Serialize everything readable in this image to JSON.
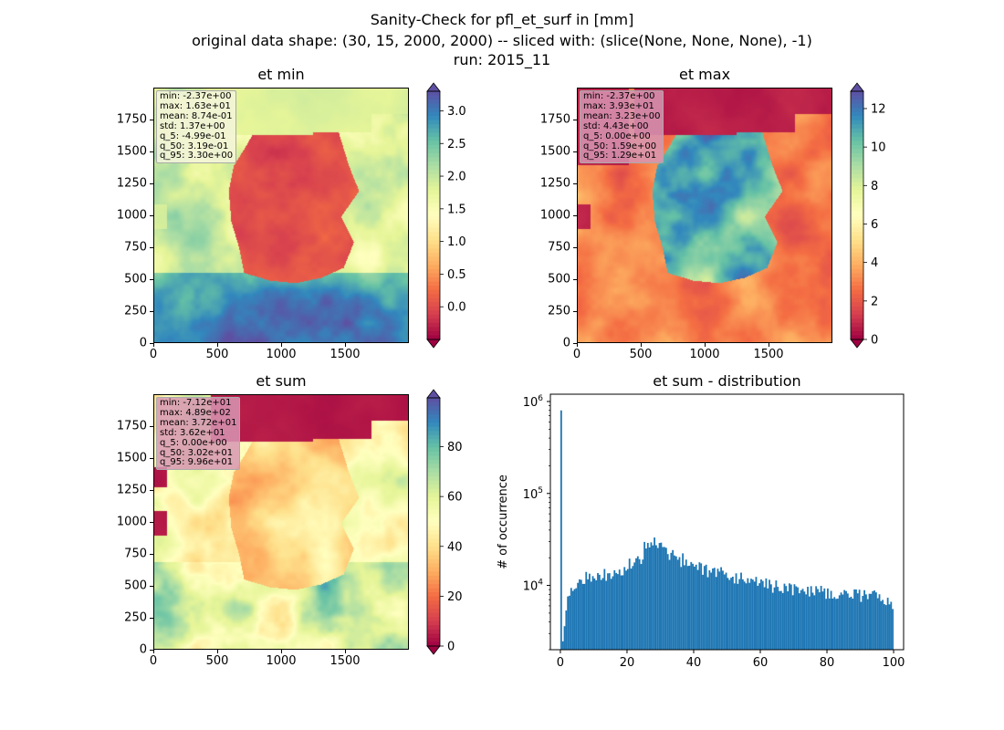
{
  "figure": {
    "title_line1": "Sanity-Check for pfl_et_surf in [mm]",
    "title_line2": "original data shape: (30, 15, 2000, 2000) -- sliced with: (slice(None, None, None), -1)",
    "title_line3": "run: 2015_11"
  },
  "colormap": [
    "#9e0142",
    "#d53e4f",
    "#f46d43",
    "#fdae61",
    "#fee08b",
    "#ffffbf",
    "#e6f598",
    "#abdda4",
    "#66c2a5",
    "#3288bd",
    "#5e4fa2"
  ],
  "panels": [
    {
      "title": "et min",
      "stats": [
        "min: -2.37e+00",
        "max: 1.63e+01",
        "mean: 8.74e-01",
        "std: 1.37e+00",
        "q_5: -4.99e-01",
        "q_50: 3.19e-01",
        "q_95: 3.30e+00"
      ],
      "stats_style": "light",
      "xticks": [
        "0",
        "500",
        "1000",
        "1500"
      ],
      "yticks": [
        "0",
        "250",
        "500",
        "750",
        "1000",
        "1250",
        "1500",
        "1750"
      ],
      "colorbar_ticks": [
        "0.0",
        "0.5",
        "1.0",
        "1.5",
        "2.0",
        "2.5",
        "3.0"
      ],
      "colorbar_range": [
        -0.5,
        3.3
      ],
      "colorbar_tick_values": [
        0.0,
        0.5,
        1.0,
        1.5,
        2.0,
        2.5,
        3.0
      ]
    },
    {
      "title": "et max",
      "stats": [
        "min: -2.37e+00",
        "max: 3.93e+01",
        "mean: 3.23e+00",
        "std: 4.43e+00",
        "q_5: 0.00e+00",
        "q_50: 1.59e+00",
        "q_95: 1.29e+01"
      ],
      "stats_style": "pink",
      "xticks": [
        "0",
        "500",
        "1000",
        "1500"
      ],
      "yticks": [
        "0",
        "250",
        "500",
        "750",
        "1000",
        "1250",
        "1500",
        "1750"
      ],
      "colorbar_ticks": [
        "0",
        "2",
        "4",
        "6",
        "8",
        "10",
        "12"
      ],
      "colorbar_range": [
        0,
        12.9
      ],
      "colorbar_tick_values": [
        0,
        2,
        4,
        6,
        8,
        10,
        12
      ]
    },
    {
      "title": "et sum",
      "stats": [
        "min: -7.12e+01",
        "max: 4.89e+02",
        "mean: 3.72e+01",
        "std: 3.62e+01",
        "q_5: 0.00e+00",
        "q_50: 3.02e+01",
        "q_95: 9.96e+01"
      ],
      "stats_style": "pink",
      "xticks": [
        "0",
        "500",
        "1000",
        "1500"
      ],
      "yticks": [
        "0",
        "250",
        "500",
        "750",
        "1000",
        "1250",
        "1500",
        "1750"
      ],
      "colorbar_ticks": [
        "0",
        "20",
        "40",
        "60",
        "80"
      ],
      "colorbar_range": [
        0,
        99.6
      ],
      "colorbar_tick_values": [
        0,
        20,
        40,
        60,
        80
      ]
    }
  ],
  "histogram": {
    "title": "et sum - distribution",
    "ylabel": "# of occurrence",
    "xticks": [
      "0",
      "20",
      "40",
      "60",
      "80",
      "100"
    ],
    "ytick_labels": [
      {
        "base": "10",
        "exp": "4",
        "value": 10000
      },
      {
        "base": "10",
        "exp": "5",
        "value": 100000
      },
      {
        "base": "10",
        "exp": "6",
        "value": 1000000
      }
    ],
    "bar_color": "#1f77b4"
  },
  "chart_data": [
    {
      "type": "heatmap",
      "title": "et min",
      "xlim": [
        0,
        2000
      ],
      "ylim": [
        0,
        2000
      ],
      "colorbar": {
        "min": -0.5,
        "max": 3.3,
        "extend": "both",
        "cmap": "Spectral"
      }
    },
    {
      "type": "heatmap",
      "title": "et max",
      "xlim": [
        0,
        2000
      ],
      "ylim": [
        0,
        2000
      ],
      "colorbar": {
        "min": 0,
        "max": 12.9,
        "extend": "both",
        "cmap": "Spectral"
      }
    },
    {
      "type": "heatmap",
      "title": "et sum",
      "xlim": [
        0,
        2000
      ],
      "ylim": [
        0,
        2000
      ],
      "colorbar": {
        "min": 0,
        "max": 99.6,
        "extend": "both",
        "cmap": "Spectral"
      }
    },
    {
      "type": "bar",
      "title": "et sum - distribution",
      "ylabel": "# of occurrence",
      "yscale": "log",
      "xlim": [
        -3,
        103
      ],
      "ylim": [
        2000,
        1200000
      ],
      "bins": [
        [
          0.0,
          800000
        ],
        [
          0.5,
          2500
        ],
        [
          1.0,
          3500
        ],
        [
          1.5,
          5000
        ],
        [
          2.0,
          6500
        ],
        [
          2.5,
          8000
        ],
        [
          5,
          11000
        ],
        [
          7.5,
          12000
        ],
        [
          10,
          12500
        ],
        [
          12.5,
          13000
        ],
        [
          15,
          13500
        ],
        [
          17.5,
          14500
        ],
        [
          20,
          17000
        ],
        [
          22.5,
          20000
        ],
        [
          25,
          28000
        ],
        [
          27.5,
          30000
        ],
        [
          30,
          26000
        ],
        [
          32.5,
          22000
        ],
        [
          35,
          19000
        ],
        [
          37.5,
          17000
        ],
        [
          40,
          16000
        ],
        [
          42.5,
          14500
        ],
        [
          45,
          14000
        ],
        [
          47.5,
          13500
        ],
        [
          50,
          12500
        ],
        [
          52.5,
          12000
        ],
        [
          55,
          11500
        ],
        [
          57.5,
          11000
        ],
        [
          60,
          10500
        ],
        [
          62.5,
          10000
        ],
        [
          65,
          9500
        ],
        [
          67.5,
          9500
        ],
        [
          70,
          9000
        ],
        [
          72.5,
          9000
        ],
        [
          75,
          8800
        ],
        [
          77.5,
          8500
        ],
        [
          80,
          8500
        ],
        [
          82.5,
          8500
        ],
        [
          85,
          8000
        ],
        [
          87.5,
          8000
        ],
        [
          90,
          7800
        ],
        [
          92.5,
          7500
        ],
        [
          95,
          7000
        ],
        [
          97.5,
          6500
        ],
        [
          99.5,
          5500
        ]
      ]
    }
  ]
}
